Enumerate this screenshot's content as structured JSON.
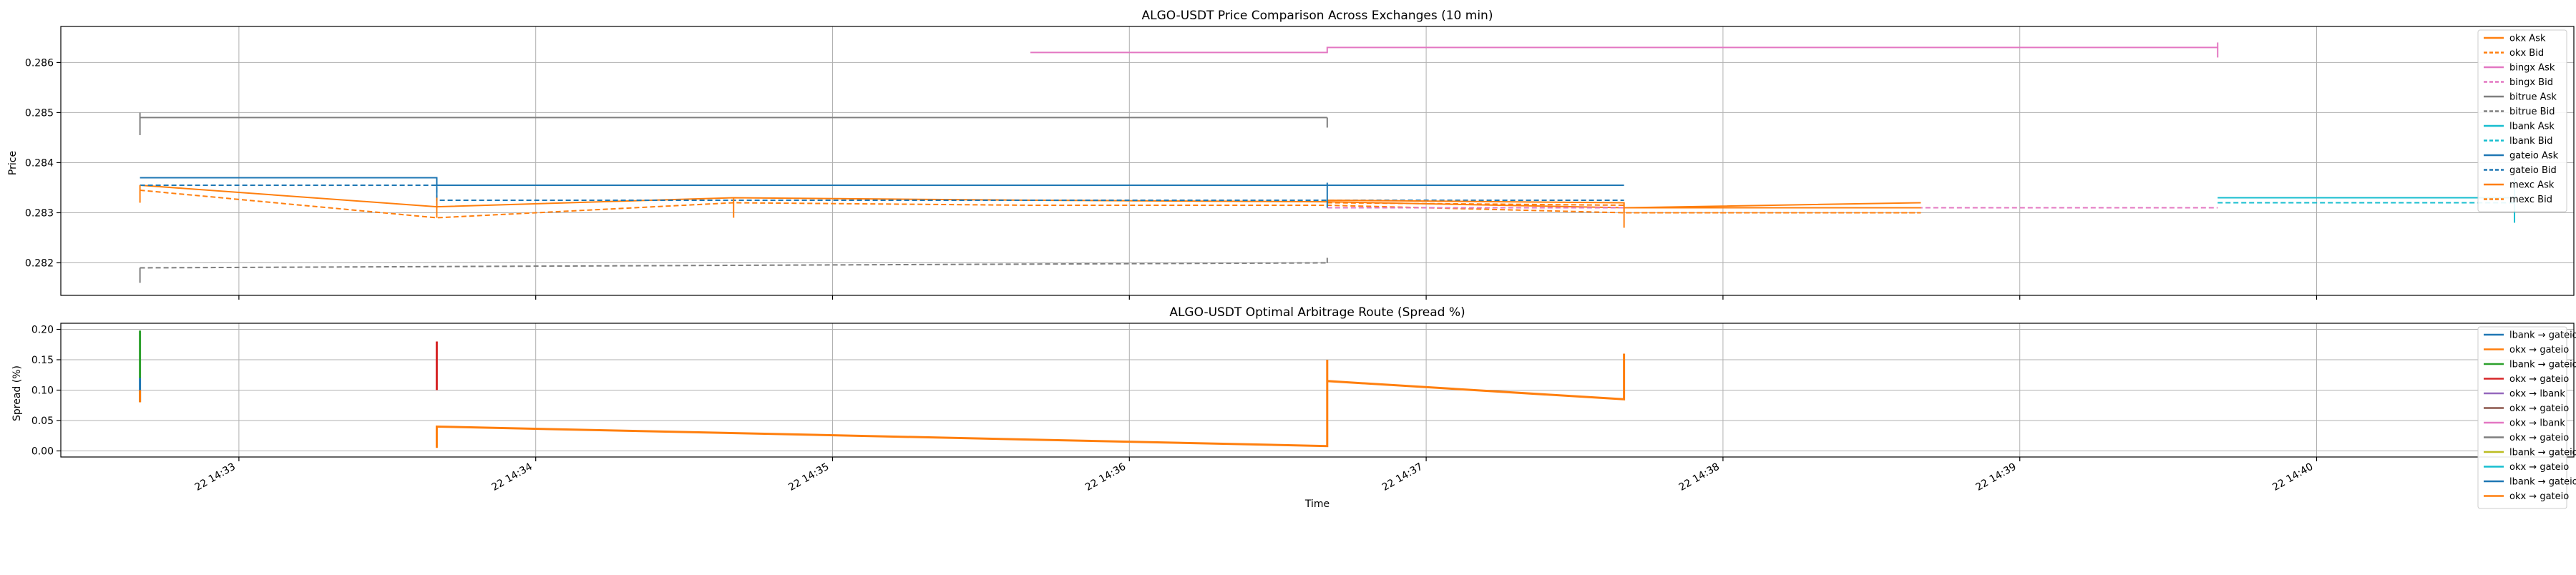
{
  "figure": {
    "xlabel": "Time"
  },
  "chart_data": [
    {
      "type": "line",
      "title": "ALGO-USDT Price Comparison Across Exchanges (10 min)",
      "xlabel": "",
      "ylabel": "Price",
      "x_ticks": [
        "22 14:33",
        "22 14:34",
        "22 14:35",
        "22 14:36",
        "22 14:37",
        "22 14:38",
        "22 14:39",
        "22 14:40"
      ],
      "x_tick_times": [
        "14:33",
        "14:34",
        "14:35",
        "14:36",
        "14:37",
        "14:38",
        "14:39",
        "14:40"
      ],
      "xlim": [
        "14:32:24",
        "14:40:52"
      ],
      "y_ticks": [
        0.282,
        0.283,
        0.284,
        0.285,
        0.286
      ],
      "ylim": [
        0.28135,
        0.28672
      ],
      "grid": true,
      "legend_position": "upper right",
      "series": [
        {
          "name": "okx Ask",
          "color": "#ff7f0e",
          "dash": "solid",
          "points": [
            [
              "14:32:40",
              0.28355
            ],
            [
              "14:33:40",
              0.28312
            ],
            [
              "14:34:40",
              0.2833
            ],
            [
              "14:35:40",
              0.28325
            ],
            [
              "14:36:40",
              0.28322
            ],
            [
              "14:37:40",
              0.2831
            ],
            [
              "14:38:40",
              0.2832
            ]
          ]
        },
        {
          "name": "okx Bid",
          "color": "#ff7f0e",
          "dash": "dashed",
          "points": [
            [
              "14:32:40",
              0.28345
            ],
            [
              "14:33:40",
              0.2829
            ],
            [
              "14:34:40",
              0.2832
            ],
            [
              "14:35:40",
              0.28315
            ],
            [
              "14:36:40",
              0.28315
            ],
            [
              "14:37:40",
              0.283
            ],
            [
              "14:38:40",
              0.283
            ]
          ]
        },
        {
          "name": "bingx Ask",
          "color": "#e377c2",
          "dash": "solid",
          "points": [
            [
              "14:35:40",
              0.2862
            ],
            [
              "14:36:40",
              0.2862
            ],
            [
              "14:36:40",
              0.2863
            ],
            [
              "14:39:40",
              0.2863
            ]
          ]
        },
        {
          "name": "bingx Bid",
          "color": "#e377c2",
          "dash": "dashed",
          "points": [
            [
              "14:36:40",
              0.2831
            ],
            [
              "14:39:40",
              0.2831
            ]
          ]
        },
        {
          "name": "bitrue Ask",
          "color": "#7f7f7f",
          "dash": "solid",
          "points": [
            [
              "14:32:40",
              0.2849
            ],
            [
              "14:36:40",
              0.2849
            ]
          ]
        },
        {
          "name": "bitrue Bid",
          "color": "#7f7f7f",
          "dash": "dashed",
          "points": [
            [
              "14:32:40",
              0.2819
            ],
            [
              "14:36:40",
              0.282
            ]
          ]
        },
        {
          "name": "lbank Ask",
          "color": "#17becf",
          "dash": "solid",
          "points": [
            [
              "14:39:40",
              0.2833
            ],
            [
              "14:40:40",
              0.2833
            ]
          ]
        },
        {
          "name": "lbank Bid",
          "color": "#17becf",
          "dash": "dashed",
          "points": [
            [
              "14:39:40",
              0.2832
            ],
            [
              "14:40:40",
              0.2832
            ]
          ]
        },
        {
          "name": "gateio Ask",
          "color": "#1f77b4",
          "dash": "solid",
          "points": [
            [
              "14:32:40",
              0.2837
            ],
            [
              "14:33:40",
              0.2837
            ],
            [
              "14:33:40",
              0.28355
            ],
            [
              "14:37:40",
              0.28355
            ]
          ]
        },
        {
          "name": "gateio Bid",
          "color": "#1f77b4",
          "dash": "dashed",
          "points": [
            [
              "14:32:40",
              0.28355
            ],
            [
              "14:33:40",
              0.28355
            ],
            [
              "14:33:40",
              0.28325
            ],
            [
              "14:37:40",
              0.28325
            ]
          ]
        },
        {
          "name": "mexc Ask",
          "color": "#ff7f0e",
          "dash": "solid",
          "points": [
            [
              "14:36:40",
              0.28325
            ],
            [
              "14:37:40",
              0.2832
            ],
            [
              "14:37:40",
              0.2831
            ],
            [
              "14:38:40",
              0.2831
            ]
          ]
        },
        {
          "name": "mexc Bid",
          "color": "#ff7f0e",
          "dash": "dashed",
          "points": [
            [
              "14:36:40",
              0.2832
            ],
            [
              "14:37:40",
              0.28315
            ],
            [
              "14:37:40",
              0.283
            ],
            [
              "14:38:40",
              0.283
            ]
          ]
        }
      ],
      "ticks_marks": [
        {
          "color": "#ff7f0e",
          "time": "14:32:40",
          "y0": 0.2832,
          "y1": 0.28355
        },
        {
          "color": "#7f7f7f",
          "time": "14:32:40",
          "y0": 0.28455,
          "y1": 0.285
        },
        {
          "color": "#7f7f7f",
          "time": "14:32:40",
          "y0": 0.2816,
          "y1": 0.2819
        },
        {
          "color": "#1f77b4",
          "time": "14:33:40",
          "y0": 0.2831,
          "y1": 0.2837
        },
        {
          "color": "#ff7f0e",
          "time": "14:33:40",
          "y0": 0.2829,
          "y1": 0.2833
        },
        {
          "color": "#ff7f0e",
          "time": "14:34:40",
          "y0": 0.2829,
          "y1": 0.2833
        },
        {
          "color": "#7f7f7f",
          "time": "14:36:40",
          "y0": 0.2847,
          "y1": 0.2849
        },
        {
          "color": "#7f7f7f",
          "time": "14:36:40",
          "y0": 0.282,
          "y1": 0.2821
        },
        {
          "color": "#1f77b4",
          "time": "14:36:40",
          "y0": 0.2831,
          "y1": 0.2836
        },
        {
          "color": "#e377c2",
          "time": "14:39:40",
          "y0": 0.2861,
          "y1": 0.2864
        },
        {
          "color": "#ff7f0e",
          "time": "14:37:40",
          "y0": 0.2827,
          "y1": 0.2832
        },
        {
          "color": "#17becf",
          "time": "14:40:40",
          "y0": 0.2828,
          "y1": 0.2837
        }
      ]
    },
    {
      "type": "line",
      "title": "ALGO-USDT Optimal Arbitrage Route (Spread %)",
      "xlabel": "Time",
      "ylabel": "Spread (%)",
      "x_ticks": [
        "22 14:33",
        "22 14:34",
        "22 14:35",
        "22 14:36",
        "22 14:37",
        "22 14:38",
        "22 14:39",
        "22 14:40"
      ],
      "xlim": [
        "14:32:24",
        "14:40:52"
      ],
      "y_ticks": [
        "0.00",
        "0.05",
        "0.10",
        "0.15",
        "0.20"
      ],
      "y_tick_values": [
        0.0,
        0.05,
        0.1,
        0.15,
        0.2
      ],
      "ylim": [
        -0.01,
        0.21
      ],
      "grid": true,
      "legend_position": "upper right",
      "series": [
        {
          "name": "lbank → gateio",
          "color": "#1f77b4",
          "points": [
            [
              "14:32:40",
              0.08
            ],
            [
              "14:32:40",
              0.12
            ]
          ]
        },
        {
          "name": "okx → gateio",
          "color": "#ff7f0e",
          "points": [
            [
              "14:32:40",
              0.08
            ],
            [
              "14:32:40",
              0.1
            ]
          ]
        },
        {
          "name": "lbank → gateio",
          "color": "#2ca02c",
          "points": [
            [
              "14:32:40",
              0.12
            ],
            [
              "14:32:40",
              0.198
            ]
          ]
        },
        {
          "name": "okx → gateio",
          "color": "#d62728",
          "points": [
            [
              "14:33:40",
              0.1
            ],
            [
              "14:33:40",
              0.18
            ]
          ]
        },
        {
          "name": "okx → lbank",
          "color": "#9467bd",
          "points": []
        },
        {
          "name": "okx → gateio",
          "color": "#8c564b",
          "points": []
        },
        {
          "name": "okx → lbank",
          "color": "#e377c2",
          "points": []
        },
        {
          "name": "okx → gateio",
          "color": "#7f7f7f",
          "points": []
        },
        {
          "name": "lbank → gateio",
          "color": "#bcbd22",
          "points": []
        },
        {
          "name": "okx → gateio",
          "color": "#17becf",
          "points": []
        },
        {
          "name": "lbank → gateio",
          "color": "#1f77b4",
          "points": []
        },
        {
          "name": "okx → gateio",
          "color": "#ff7f0e",
          "points": [
            [
              "14:33:40",
              0.005
            ],
            [
              "14:33:40",
              0.04
            ],
            [
              "14:36:40",
              0.008
            ],
            [
              "14:36:40",
              0.15
            ],
            [
              "14:36:40",
              0.115
            ],
            [
              "14:37:40",
              0.085
            ],
            [
              "14:37:40",
              0.16
            ]
          ]
        }
      ]
    }
  ]
}
